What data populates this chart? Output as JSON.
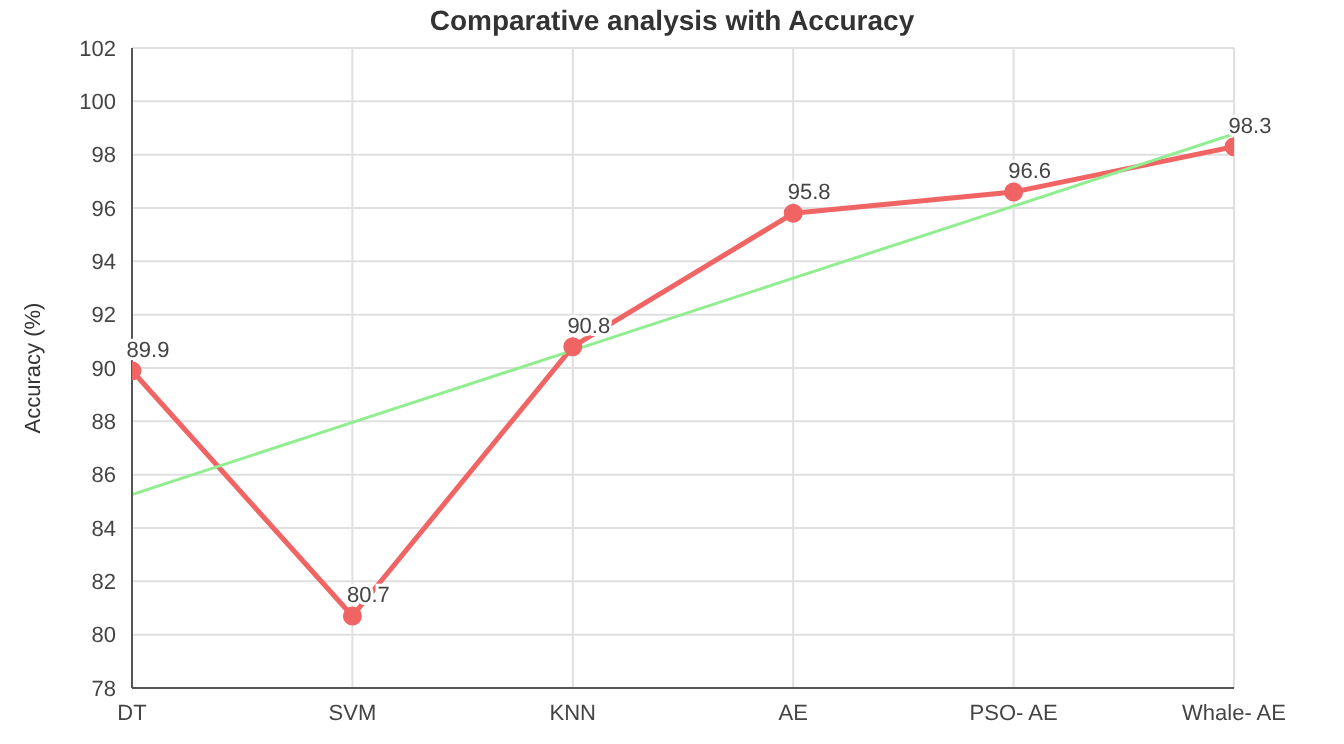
{
  "chart_data": {
    "type": "line",
    "title": "Comparative analysis with Accuracy",
    "ylabel": "Accuracy (%)",
    "categories": [
      "DT",
      "SVM",
      "KNN",
      "AE",
      "PSO- AE",
      "Whale- AE"
    ],
    "series": [
      {
        "color": "#f06464",
        "values": [
          89.9,
          80.7,
          90.8,
          95.8,
          96.6,
          98.3
        ],
        "value_labels": [
          "89.9",
          "80.7",
          "90.8",
          "95.8",
          "96.6",
          "98.3"
        ],
        "marker": "circle"
      },
      {
        "color": "#90ee90",
        "values": [
          85.25,
          87.96,
          90.66,
          93.37,
          96.07,
          98.78
        ],
        "marker": "none"
      }
    ],
    "ylim": [
      78,
      102
    ],
    "yticks": [
      78,
      80,
      82,
      84,
      86,
      88,
      90,
      92,
      94,
      96,
      98,
      100,
      102
    ],
    "grid": true,
    "legend": false,
    "line_style": "solid"
  }
}
